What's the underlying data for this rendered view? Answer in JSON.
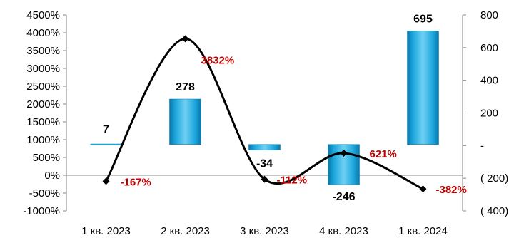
{
  "chart_data": {
    "type": "bar",
    "title": "",
    "categories": [
      "1 кв. 2023",
      "2 кв. 2023",
      "3 кв. 2023",
      "4 кв. 2023",
      "1 кв. 2024"
    ],
    "series": [
      {
        "values": [
          7,
          278,
          -34,
          -246,
          695
        ],
        "data_labels": [
          "7",
          "278",
          "-34",
          "-246",
          "695"
        ],
        "axis": "right",
        "type": "bar"
      },
      {
        "values": [
          -167,
          3832,
          -112,
          621,
          -382
        ],
        "data_labels": [
          "-167%",
          "3832%",
          "-112%",
          "621%",
          "-382%"
        ],
        "axis": "left",
        "type": "line"
      }
    ],
    "left_axis": {
      "ylim": [
        -1000,
        4500
      ],
      "ticks": [
        4500,
        4000,
        3500,
        3000,
        2500,
        2000,
        1500,
        1000,
        500,
        0,
        -500,
        -1000
      ],
      "tick_labels": [
        "4500%",
        "4000%",
        "3500%",
        "3000%",
        "2500%",
        "2000%",
        "1500%",
        "1000%",
        "500%",
        "0%",
        "-500%",
        "-1000%"
      ]
    },
    "right_axis": {
      "ylim": [
        -400,
        800
      ],
      "ticks": [
        800,
        600,
        400,
        200,
        0,
        -200,
        -400
      ],
      "tick_labels": [
        "800",
        "600",
        "400",
        "200",
        "-",
        "( 200)",
        "( 400)"
      ]
    },
    "colors": {
      "bar": "#1aa6dc",
      "line": "#000000",
      "pct_label": "#c00000"
    }
  }
}
